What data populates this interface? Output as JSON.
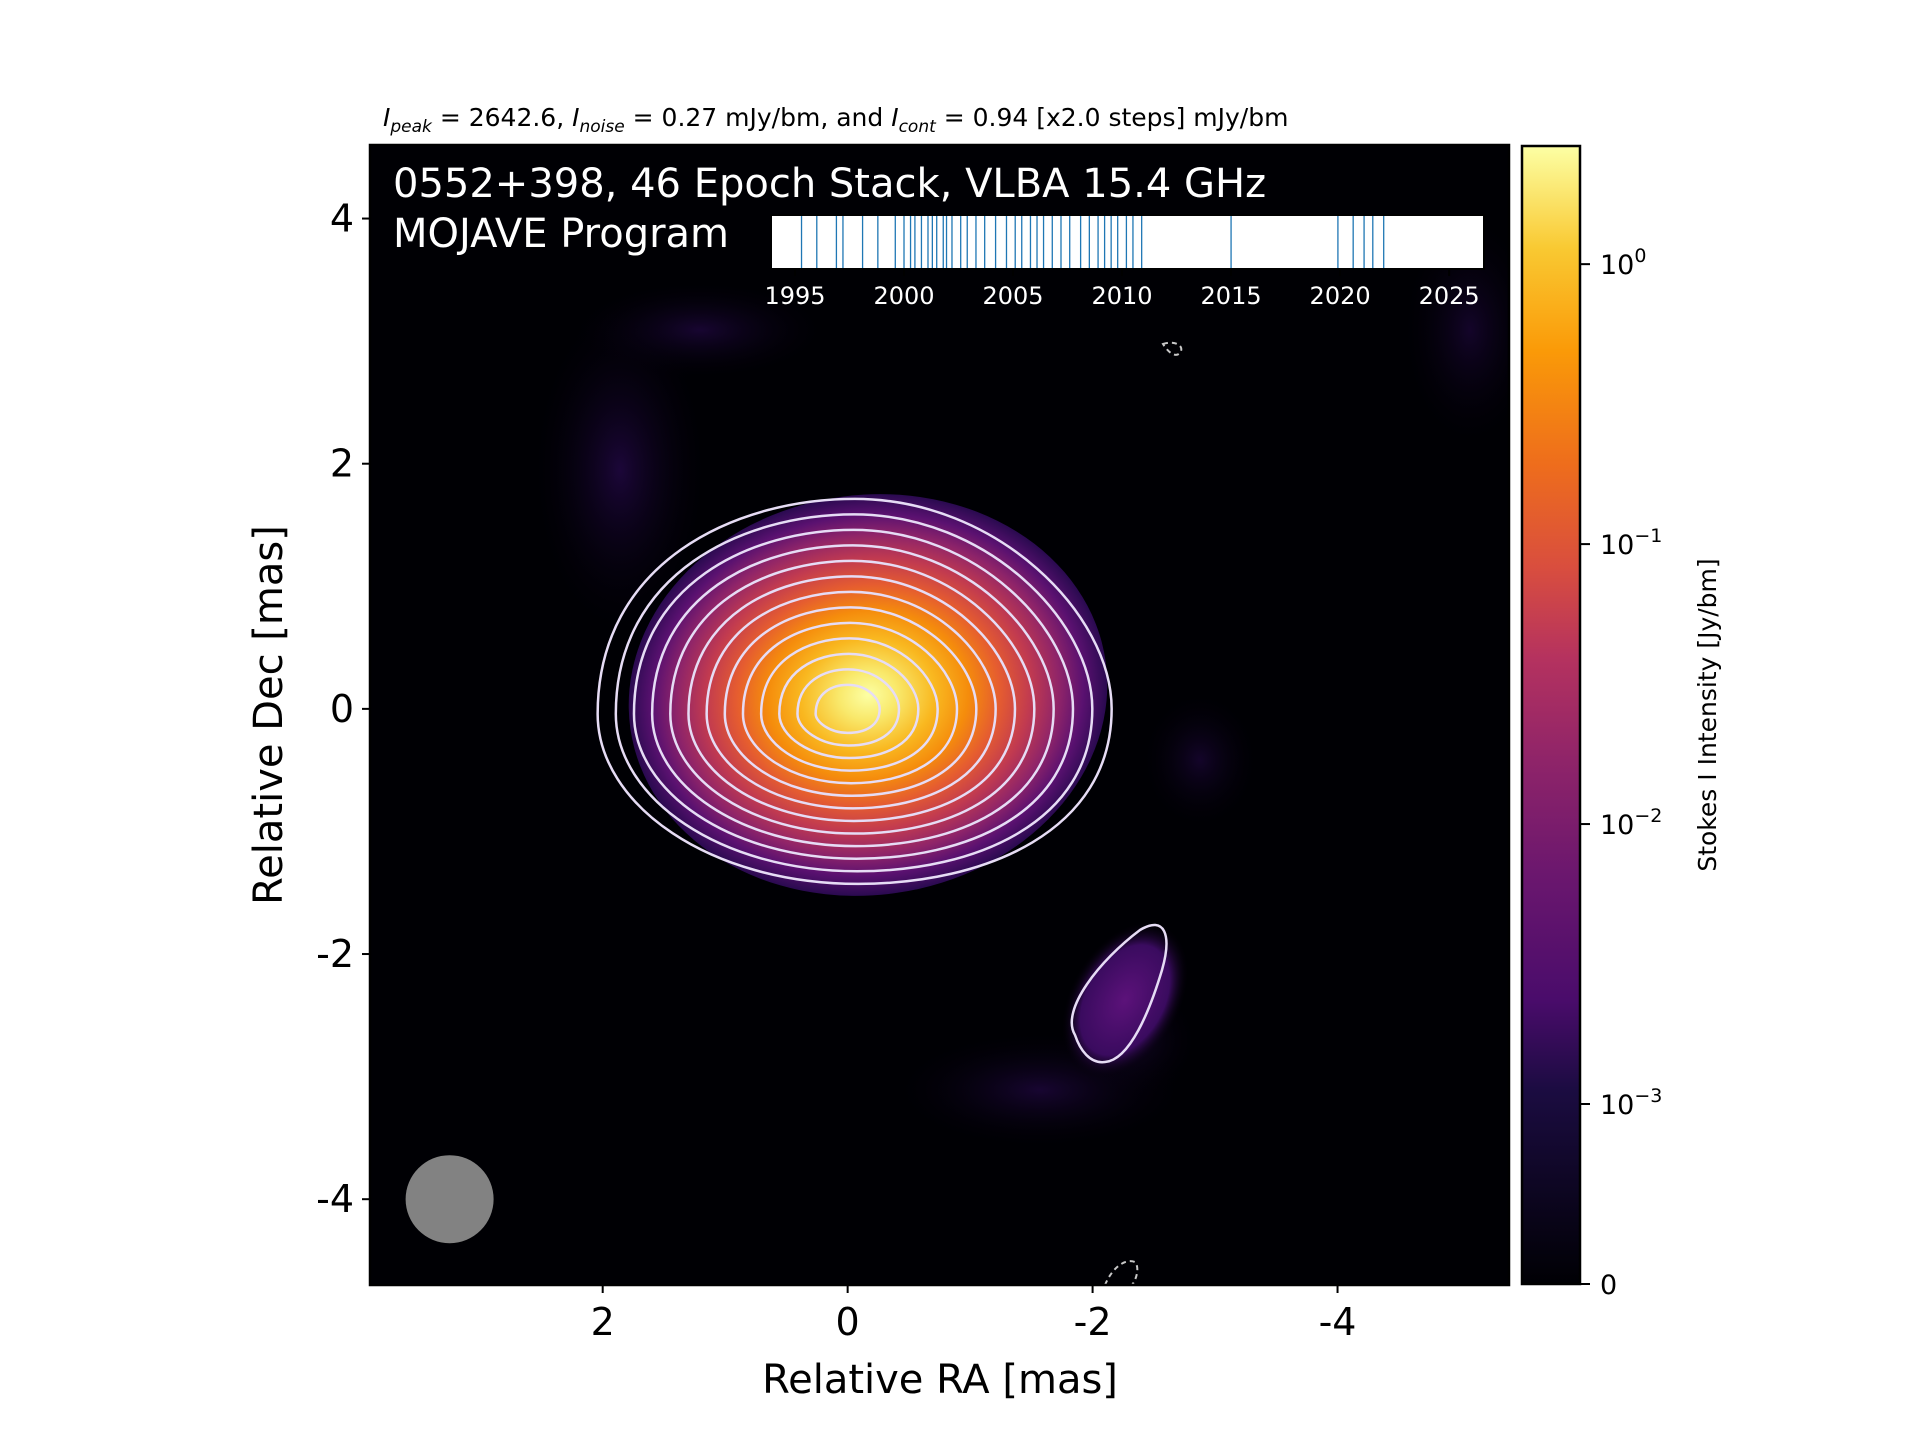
{
  "header": {
    "peak_symbol": "I",
    "peak_sub": "peak",
    "peak_value": " = 2642.6, ",
    "noise_symbol": "I",
    "noise_sub": "noise",
    "noise_value": " = 0.27 mJy/bm, and ",
    "cont_symbol": "I",
    "cont_sub": "cont",
    "cont_value": " = 0.94 [x2.0 steps] mJy/bm"
  },
  "title_line1": "0552+398, 46 Epoch Stack, VLBA 15.4 GHz",
  "title_line2": "MOJAVE Program",
  "chart_data": [
    {
      "type": "heatmap",
      "xlabel": "Relative RA [mas]",
      "ylabel": "Relative Dec [mas]",
      "xlim": [
        3.9,
        -5.4
      ],
      "ylim": [
        -4.7,
        4.6
      ],
      "x_ticks": [
        {
          "value": 2,
          "label": "2"
        },
        {
          "value": 0,
          "label": "0"
        },
        {
          "value": -2,
          "label": "-2"
        },
        {
          "value": -4,
          "label": "-4"
        }
      ],
      "y_ticks": [
        {
          "value": 4,
          "label": "4"
        },
        {
          "value": 2,
          "label": "2"
        },
        {
          "value": 0,
          "label": "0"
        },
        {
          "value": -2,
          "label": "-2"
        },
        {
          "value": -4,
          "label": "-4"
        }
      ],
      "peak_position": [
        0,
        0
      ],
      "peak_intensity_mJy_per_bm": 2642.6,
      "noise_mJy_per_bm": 0.27,
      "lowest_contour_mJy_per_bm": 0.94,
      "contour_step_factor": 2.0,
      "contours_around_core": 13,
      "secondary_feature_position": [
        -2.1,
        -2.5
      ],
      "beam_position": [
        3.25,
        -4.0
      ],
      "colormap": "inferno",
      "colorbar": {
        "label": "Stokes I Intensity [Jy/bm]",
        "scale": "log",
        "min": 0,
        "max": 2.6426,
        "ticks": [
          {
            "value": 1,
            "base": "10",
            "exp": "0"
          },
          {
            "value": 0.1,
            "base": "10",
            "exp": "−1"
          },
          {
            "value": 0.01,
            "base": "10",
            "exp": "−2"
          },
          {
            "value": 0.001,
            "base": "10",
            "exp": "−3"
          },
          {
            "value": 0,
            "label": "0"
          }
        ]
      }
    },
    {
      "type": "scatter",
      "description_role": "epoch timeline inset",
      "xlim": [
        1993.9,
        2026.6
      ],
      "x_ticks": [
        "1995",
        "2000",
        "2005",
        "2010",
        "2015",
        "2020",
        "2025"
      ],
      "epochs": [
        1995.3,
        1996.0,
        1996.9,
        1997.2,
        1998.1,
        1998.8,
        1999.6,
        2000.0,
        2000.3,
        2000.5,
        2000.8,
        2001.1,
        2001.3,
        2001.5,
        2001.8,
        2001.95,
        2002.2,
        2002.6,
        2002.9,
        2003.3,
        2003.7,
        2004.2,
        2004.7,
        2005.1,
        2005.4,
        2005.8,
        2006.1,
        2006.4,
        2006.8,
        2007.2,
        2007.6,
        2008.1,
        2008.5,
        2008.9,
        2009.2,
        2009.5,
        2009.8,
        2010.2,
        2010.5,
        2010.9,
        2015.0,
        2019.9,
        2020.6,
        2021.1,
        2021.5,
        2022.0
      ]
    }
  ],
  "colors": {
    "contour": "#e6dcf5",
    "negative_contour": "#c8c8c8",
    "beam": "#828282",
    "title_text": "#ffffff",
    "epoch_line": "#1f77b4"
  }
}
